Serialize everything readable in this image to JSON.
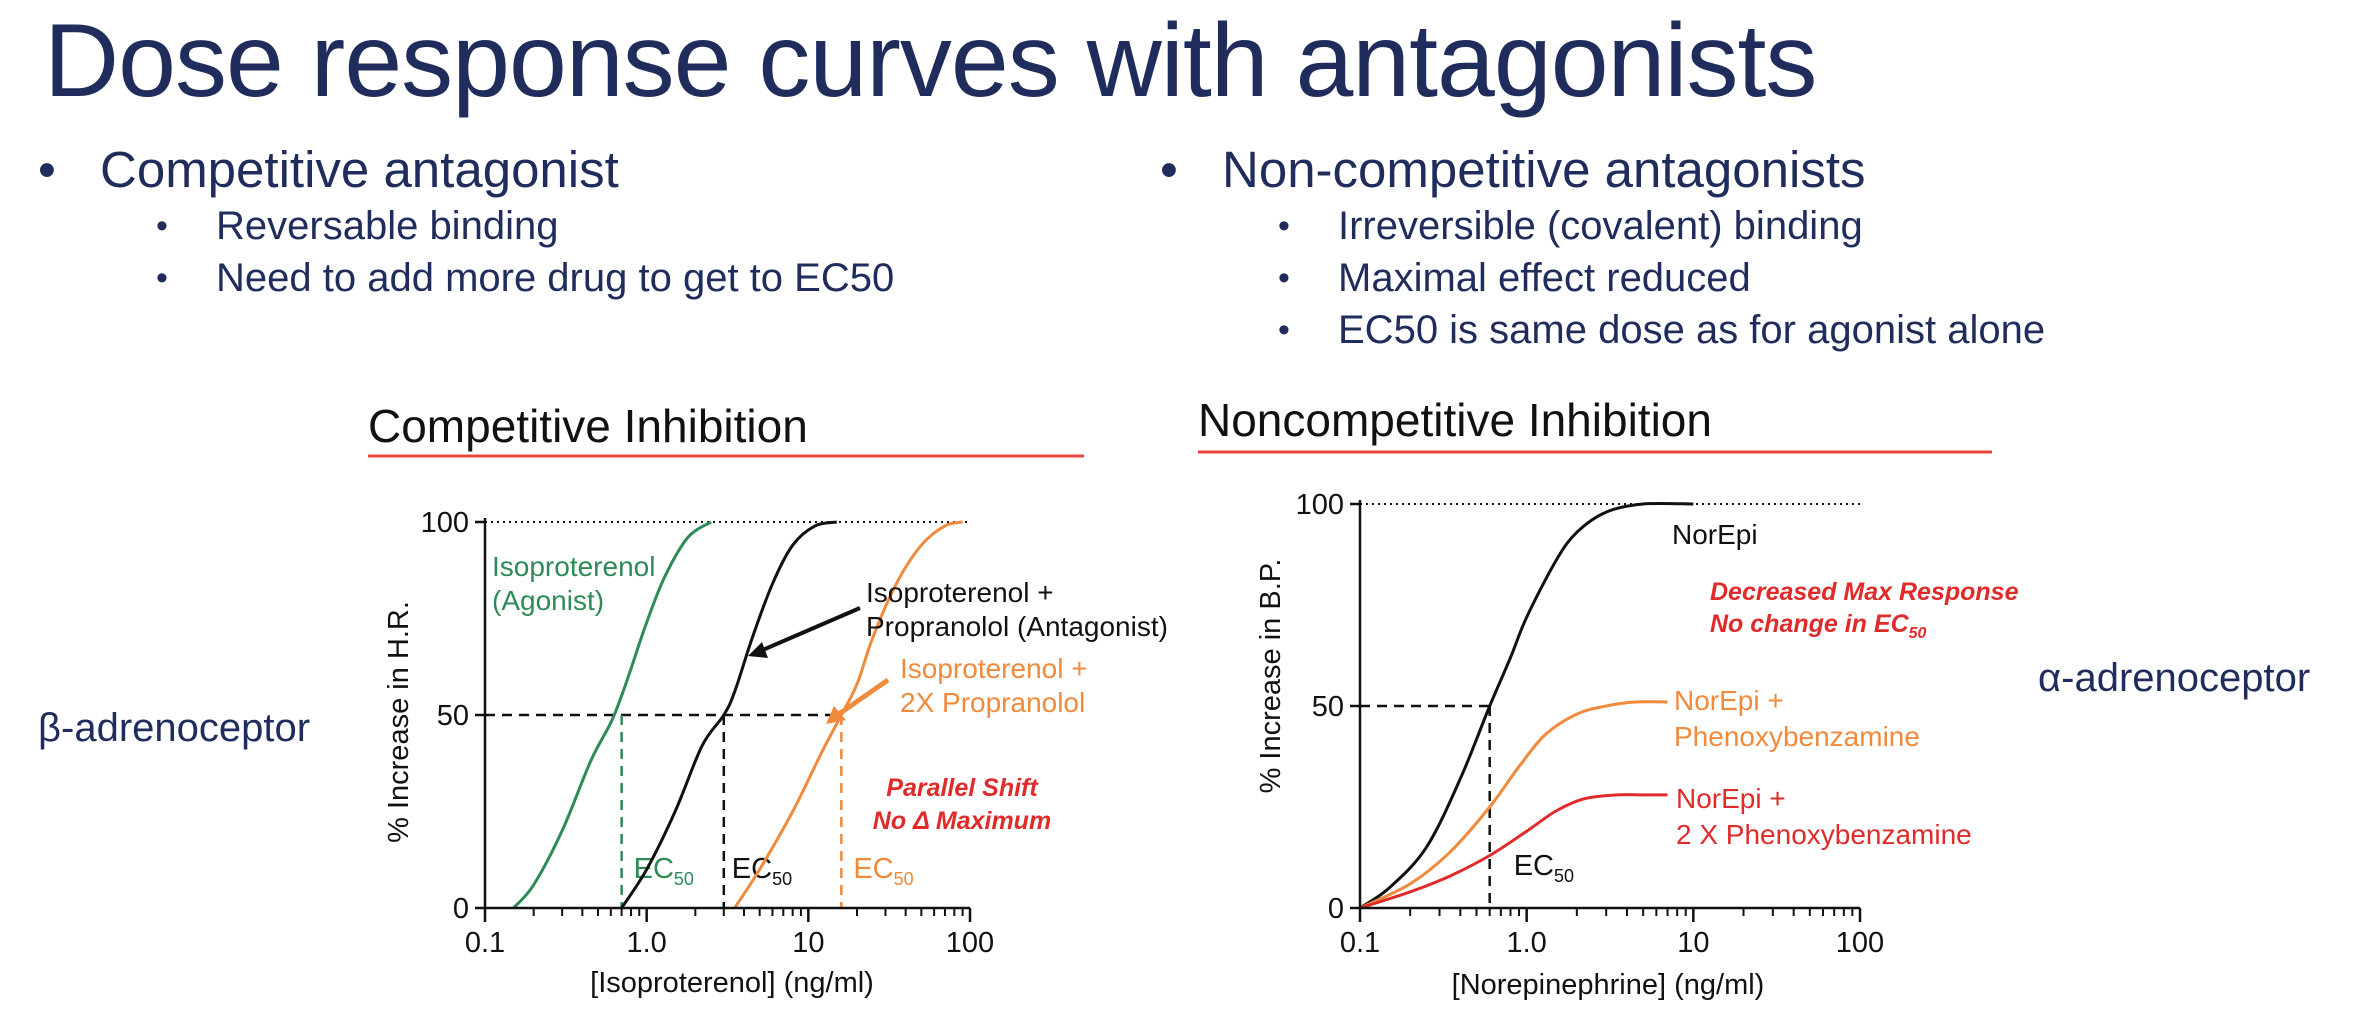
{
  "slide": {
    "title": "Dose response curves with antagonists",
    "left": {
      "heading": "Competitive antagonist",
      "points": [
        "Reversable binding",
        "Need to add more drug to get to EC50"
      ]
    },
    "right": {
      "heading": "Non-competitive antagonists",
      "points": [
        "Irreversible (covalent) binding",
        "Maximal effect reduced",
        "EC50 is same dose as for agonist alone"
      ]
    },
    "bullet": "•",
    "left_side_label": "β-adrenoceptor",
    "right_side_label": "α-adrenoceptor"
  },
  "colors": {
    "text_navy": "#1f2c5c",
    "green": "#2e8b57",
    "black": "#111111",
    "orange": "#f08a3c",
    "red": "#e02b2b",
    "underline": "#e8473c"
  },
  "chart_data": [
    {
      "type": "line",
      "title": "Competitive Inhibition",
      "xlabel": "[Isoproterenol] (ng/ml)",
      "ylabel": "% Increase in H.R.",
      "x_scale": "log",
      "xlim": [
        0.1,
        100
      ],
      "ylim": [
        0,
        100
      ],
      "x_ticks": [
        "0.1",
        "1.0",
        "10",
        "100"
      ],
      "y_ticks": [
        "0",
        "50",
        "100"
      ],
      "series": [
        {
          "name": "Isoproterenol (Agonist)",
          "color": "#2e8b57",
          "x": [
            0.15,
            0.2,
            0.3,
            0.45,
            0.6,
            0.7,
            0.8,
            1.0,
            1.3,
            1.8,
            2.5
          ],
          "y": [
            0,
            6,
            20,
            38,
            48,
            55,
            62,
            74,
            86,
            96,
            100
          ]
        },
        {
          "name": "Isoproterenol + Propranolol (Antagonist)",
          "color": "#111111",
          "x": [
            0.7,
            1.0,
            1.5,
            2.2,
            3.0,
            3.5,
            4.5,
            6.0,
            8.0,
            11,
            15
          ],
          "y": [
            0,
            10,
            25,
            42,
            50,
            56,
            70,
            84,
            94,
            99,
            100
          ]
        },
        {
          "name": "Isoproterenol + 2X Propranolol",
          "color": "#f08a3c",
          "x": [
            3.5,
            5.0,
            8.0,
            12,
            16,
            20,
            25,
            35,
            50,
            70,
            90
          ],
          "y": [
            0,
            10,
            25,
            40,
            50,
            58,
            70,
            84,
            94,
            99,
            100
          ]
        }
      ],
      "ec50": [
        {
          "label": "EC",
          "sub": "50",
          "x": 0.7,
          "color": "#2e8b57"
        },
        {
          "label": "EC",
          "sub": "50",
          "x": 3.0,
          "color": "#111111"
        },
        {
          "label": "EC",
          "sub": "50",
          "x": 16,
          "color": "#f08a3c"
        }
      ],
      "annotations": {
        "agonist_l1": "Isoproterenol",
        "agonist_l2": "(Agonist)",
        "antag_l1": "Isoproterenol +",
        "antag_l2": "Propranolol (Antagonist)",
        "antag2_l1": "Isoproterenol +",
        "antag2_l2": "2X  Propranolol",
        "shift_l1": "Parallel Shift",
        "shift_l2": "No Δ  Maximum"
      }
    },
    {
      "type": "line",
      "title": "Noncompetitive Inhibition",
      "xlabel": "[Norepinephrine] (ng/ml)",
      "ylabel": "% Increase in  B.P.",
      "x_scale": "log",
      "xlim": [
        0.1,
        100
      ],
      "ylim": [
        0,
        100
      ],
      "x_ticks": [
        "0.1",
        "1.0",
        "10",
        "100"
      ],
      "y_ticks": [
        "0",
        "50",
        "100"
      ],
      "series": [
        {
          "name": "NorEpi",
          "color": "#111111",
          "x": [
            0.1,
            0.15,
            0.25,
            0.4,
            0.6,
            0.8,
            1.0,
            1.5,
            2.0,
            3.0,
            5.0,
            10
          ],
          "y": [
            0,
            5,
            15,
            32,
            50,
            62,
            72,
            86,
            93,
            98,
            100,
            100
          ]
        },
        {
          "name": "NorEpi + Phenoxybenzamine",
          "color": "#f08a3c",
          "x": [
            0.1,
            0.2,
            0.35,
            0.6,
            0.9,
            1.3,
            2.0,
            3.0,
            4.5,
            7.0
          ],
          "y": [
            0,
            6,
            14,
            25,
            35,
            43,
            48,
            50,
            51,
            51
          ]
        },
        {
          "name": "NorEpi + 2 X Phenoxybenzamine",
          "color": "#e02b2b",
          "x": [
            0.1,
            0.2,
            0.35,
            0.6,
            1.0,
            1.5,
            2.2,
            3.5,
            5.0,
            7.0
          ],
          "y": [
            0,
            4,
            8,
            13,
            19,
            24,
            27,
            28,
            28,
            28
          ]
        }
      ],
      "ec50": [
        {
          "label": "EC",
          "sub": "50",
          "x": 0.6,
          "color": "#111111"
        }
      ],
      "annotations": {
        "norepi": "NorEpi",
        "decr_l1": "Decreased Max Response",
        "decr_l2": "No change in EC",
        "decr_l2_sub": "50",
        "pheno_l1": "NorEpi +",
        "pheno_l2": "Phenoxybenzamine",
        "pheno2_l1": "NorEpi +",
        "pheno2_l2": "2 X Phenoxybenzamine"
      }
    }
  ]
}
